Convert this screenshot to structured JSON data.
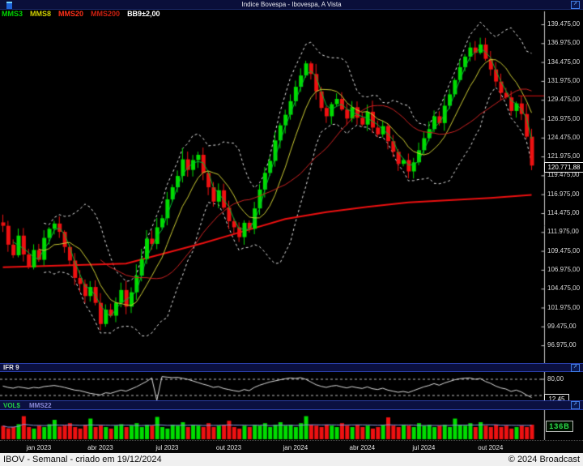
{
  "header": {
    "title": "Indice Bovespa - Ibovespa, A Vista"
  },
  "legend": {
    "items": [
      {
        "label": "MMS3",
        "color": "#00d000"
      },
      {
        "label": "MMS8",
        "color": "#d0d000"
      },
      {
        "label": "MMS20",
        "color": "#ff3018"
      },
      {
        "label": "MMS200",
        "color": "#cc2010"
      },
      {
        "label": "BB9±2,00",
        "color": "#ffffff"
      }
    ]
  },
  "panels": {
    "ifr": {
      "label": "IFR 9",
      "upper_grid_label": "80,00",
      "last_value_label": "12,45"
    },
    "vol": {
      "label": "VOL$",
      "avg_label": "MMS22",
      "last_value_label": "136B"
    }
  },
  "status": {
    "left": "IBOV - Semanal - criado em 19/12/2024",
    "right": "© 2024 Broadcast"
  },
  "chart_data": {
    "type": "candlestick",
    "title": "Indice Bovespa - Ibovespa, A Vista",
    "period": "weekly",
    "last_price": "120.771,88",
    "colors": {
      "up": "#00dd00",
      "down": "#ee1111",
      "mms3": "#00bb33",
      "mms8": "#cccc33",
      "mms20": "#cc2222",
      "mms200": "#ee1010",
      "bollinger": "#e8e8e8",
      "ifr_line": "#dcdcdc",
      "vol_avg": "#8890e0",
      "axis": "#c8c8c8",
      "alert_line": "#dd1111"
    },
    "y_axis": {
      "max": 139475,
      "step": 2500,
      "labels": [
        "139.475,00",
        "136.975,00",
        "134.475,00",
        "131.975,00",
        "129.475,00",
        "126.975,00",
        "124.475,00",
        "121.975,00",
        "119.475,00",
        "116.975,00",
        "114.475,00",
        "111.975,00",
        "109.475,00",
        "106.975,00",
        "104.475,00",
        "101.975,00",
        "99.475,00",
        "96.975,00"
      ]
    },
    "x_axis": {
      "labels": [
        {
          "text": "jan 2023",
          "i": 7
        },
        {
          "text": "abr 2023",
          "i": 19
        },
        {
          "text": "jul 2023",
          "i": 32
        },
        {
          "text": "out 2023",
          "i": 44
        },
        {
          "text": "jan 2024",
          "i": 57
        },
        {
          "text": "abr 2024",
          "i": 70
        },
        {
          "text": "jul 2024",
          "i": 82
        },
        {
          "text": "out 2024",
          "i": 95
        }
      ]
    },
    "series": {
      "close": [
        112800,
        110300,
        108900,
        111500,
        109000,
        107300,
        109600,
        108300,
        111200,
        112400,
        113100,
        112000,
        110000,
        108200,
        105900,
        105100,
        103500,
        104700,
        102600,
        99800,
        101700,
        100900,
        102600,
        104300,
        102100,
        104000,
        106200,
        108400,
        111100,
        110400,
        112600,
        113800,
        116300,
        117900,
        119400,
        121600,
        120200,
        121500,
        122200,
        119800,
        117900,
        116000,
        117500,
        115200,
        113400,
        112600,
        111300,
        113200,
        112400,
        115100,
        117600,
        119800,
        121400,
        124100,
        126100,
        127500,
        129300,
        131200,
        132700,
        134300,
        132900,
        130600,
        128400,
        127300,
        128900,
        129600,
        128200,
        127000,
        128500,
        127100,
        126200,
        127900,
        125800,
        124900,
        126000,
        124000,
        122600,
        121000,
        121500,
        120000,
        121200,
        122800,
        124400,
        125600,
        127300,
        126400,
        128700,
        130200,
        132100,
        133800,
        135200,
        136400,
        135700,
        136800,
        134900,
        133500,
        131900,
        130400,
        129800,
        128000,
        129000,
        127600,
        124600,
        120772
      ],
      "ifr9": [
        55,
        50,
        47,
        52,
        49,
        46,
        50,
        48,
        53,
        55,
        57,
        54,
        50,
        45,
        40,
        38,
        33,
        28,
        25,
        22,
        30,
        28,
        34,
        40,
        36,
        44,
        52,
        62,
        72,
        85,
        2,
        90,
        88,
        86,
        87,
        84,
        80,
        74,
        68,
        62,
        57,
        50,
        53,
        46,
        42,
        38,
        35,
        42,
        38,
        50,
        58,
        64,
        70,
        74,
        78,
        82,
        85,
        83,
        86,
        80,
        70,
        60,
        54,
        50,
        55,
        57,
        52,
        48,
        53,
        49,
        46,
        52,
        45,
        42,
        47,
        40,
        36,
        32,
        35,
        31,
        38,
        45,
        52,
        57,
        64,
        58,
        66,
        72,
        78,
        82,
        84,
        85,
        80,
        83,
        72,
        65,
        55,
        48,
        44,
        35,
        40,
        33,
        22,
        12.45
      ],
      "volume_rel": [
        0.55,
        0.45,
        0.5,
        0.62,
        0.95,
        0.5,
        0.44,
        0.56,
        0.5,
        0.62,
        0.8,
        0.52,
        0.56,
        0.66,
        0.5,
        0.44,
        0.6,
        0.85,
        0.5,
        0.56,
        0.5,
        0.44,
        0.56,
        0.62,
        0.5,
        0.56,
        0.66,
        0.5,
        0.6,
        0.56,
        0.92,
        0.5,
        0.44,
        0.6,
        0.56,
        0.7,
        0.5,
        0.6,
        0.56,
        0.5,
        0.66,
        0.5,
        0.56,
        0.6,
        0.76,
        0.5,
        0.44,
        0.56,
        0.5,
        0.6,
        0.56,
        0.66,
        0.5,
        0.6,
        0.7,
        0.56,
        0.6,
        0.5,
        0.66,
        0.95,
        0.6,
        0.56,
        0.5,
        0.6,
        0.56,
        0.5,
        0.66,
        0.56,
        0.5,
        0.6,
        0.5,
        0.56,
        0.44,
        0.5,
        0.6,
        0.9,
        0.56,
        0.5,
        0.6,
        0.56,
        0.5,
        0.66,
        0.56,
        0.6,
        0.5,
        0.56,
        0.6,
        0.5,
        0.85,
        0.6,
        0.56,
        0.66,
        0.5,
        0.7,
        0.56,
        0.5,
        0.6,
        0.5,
        0.56,
        0.44,
        0.5,
        0.56,
        0.5,
        0.6
      ]
    },
    "overlays": [
      "MMS3",
      "MMS8",
      "MMS20",
      "MMS200",
      "BB9±2,00"
    ],
    "mms200_anchor": [
      [
        0,
        107300
      ],
      [
        24,
        107800
      ],
      [
        39,
        110500
      ],
      [
        47,
        112100
      ],
      [
        55,
        113700
      ],
      [
        63,
        114600
      ],
      [
        71,
        115300
      ],
      [
        79,
        115900
      ],
      [
        87,
        116200
      ],
      [
        95,
        116500
      ],
      [
        103,
        116900
      ]
    ],
    "alert_line_price": 130000,
    "ifr_grid": [
      80,
      20
    ]
  }
}
